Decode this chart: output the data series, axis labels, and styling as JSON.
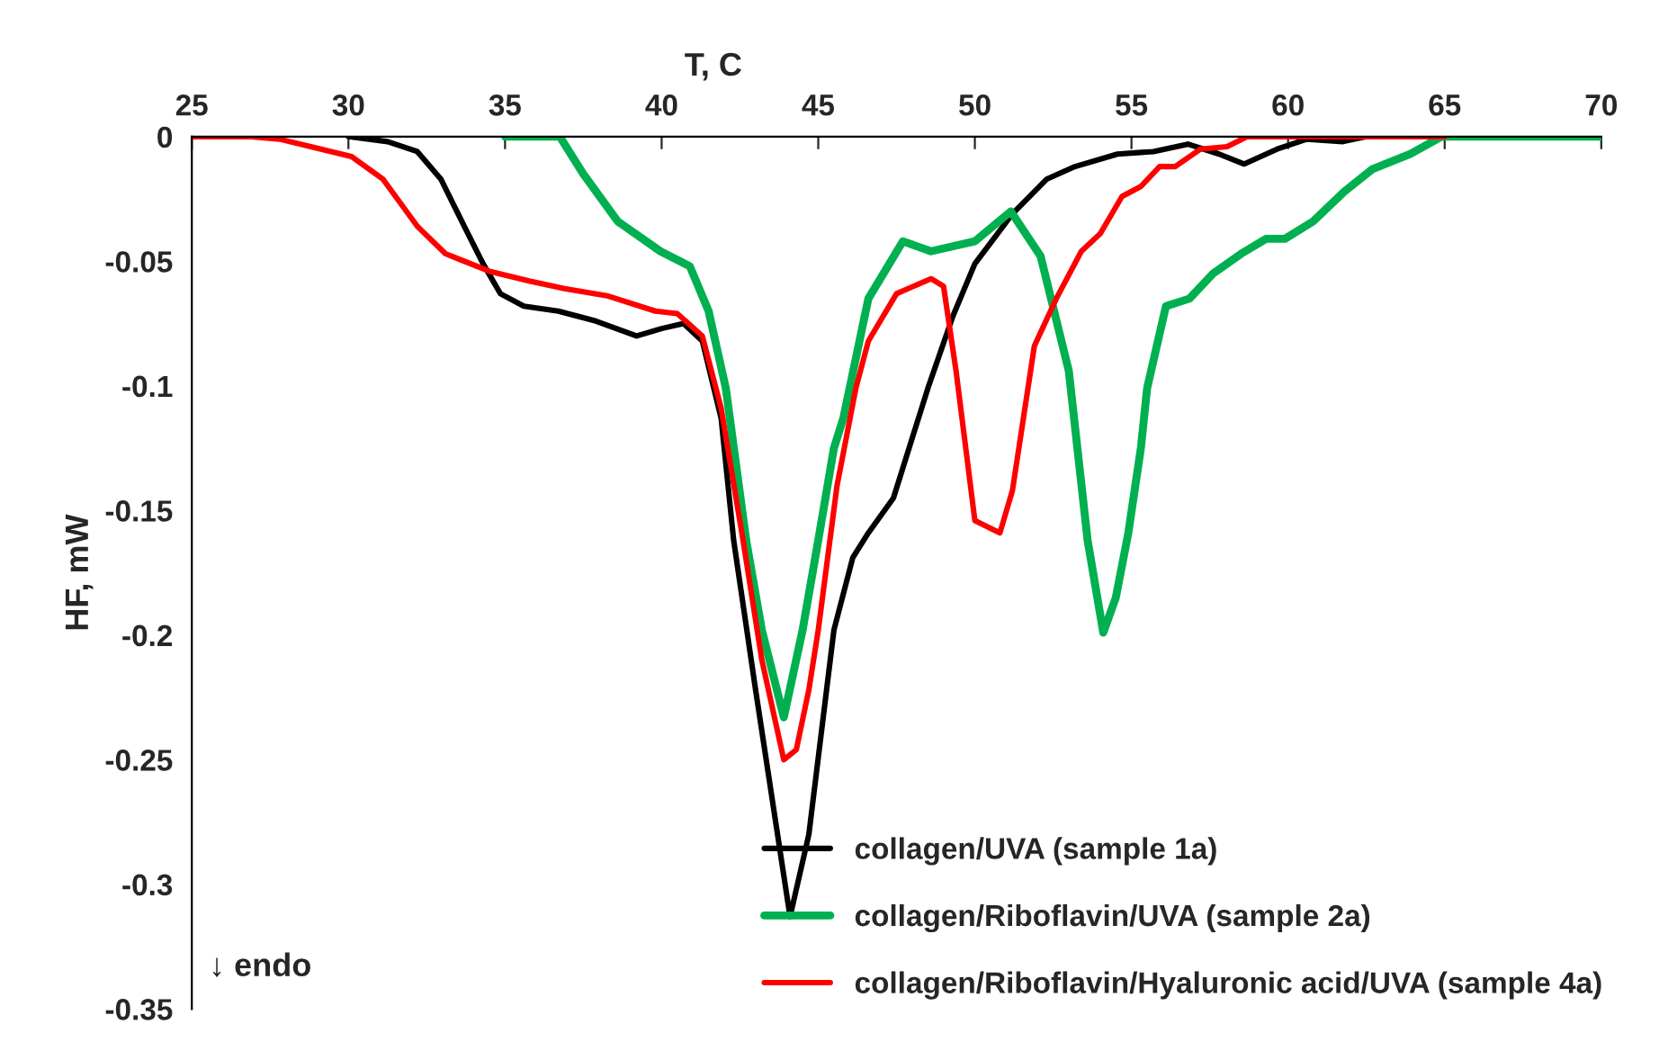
{
  "chart_data": {
    "type": "line",
    "xlabel": "T, C",
    "ylabel": "HF, mW",
    "xlim": [
      25,
      70
    ],
    "xticks": [
      25,
      30,
      35,
      40,
      45,
      50,
      55,
      60,
      65,
      70
    ],
    "ylim": [
      -0.35,
      0
    ],
    "yticks": [
      {
        "value": -0.35,
        "label": "-0.35"
      },
      {
        "value": -0.3,
        "label": "-0.3"
      },
      {
        "value": -0.25,
        "label": "-0.25"
      },
      {
        "value": -0.2,
        "label": "-0.2"
      },
      {
        "value": -0.15,
        "label": "-0.15"
      },
      {
        "value": -0.1,
        "label": "-0.1"
      },
      {
        "value": -0.05,
        "label": "-0.05"
      },
      {
        "value": 0,
        "label": "0"
      }
    ],
    "grid": false,
    "legend": "bottom right",
    "marker": "none",
    "line_style": "solid",
    "annotations": [
      "↓ endo"
    ],
    "series": [
      {
        "name": "collagen/UVA (sample 1a)",
        "color": "#000000",
        "x": [
          30,
          31.25,
          32.2,
          32.95,
          33.7,
          34.3,
          34.85,
          35.6,
          36.7,
          37.9,
          39.2,
          40,
          40.7,
          41.3,
          41.9,
          42.3,
          43.0,
          44.1,
          44.7,
          45.5,
          46.1,
          46.6,
          47.4,
          48.5,
          49.3,
          50.0,
          51.2,
          52.3,
          53.2,
          54.55,
          55.7,
          56.8,
          57.8,
          58.6,
          59.65,
          60.6,
          61.75,
          62.5
        ],
        "values": [
          0,
          -0.002,
          -0.006,
          -0.017,
          -0.036,
          -0.051,
          -0.063,
          -0.068,
          -0.07,
          -0.074,
          -0.08,
          -0.077,
          -0.075,
          -0.082,
          -0.113,
          -0.162,
          -0.222,
          -0.313,
          -0.28,
          -0.198,
          -0.169,
          -0.159,
          -0.145,
          -0.101,
          -0.072,
          -0.051,
          -0.031,
          -0.017,
          -0.012,
          -0.007,
          -0.006,
          -0.003,
          -0.007,
          -0.011,
          -0.005,
          -0.001,
          -0.002,
          0
        ]
      },
      {
        "name": "collagen/Riboflavin/UVA (sample 2a)",
        "color": "#00b050",
        "x": [
          35,
          36.75,
          37.5,
          38.6,
          39.96,
          40.9,
          41.5,
          42.05,
          42.7,
          43.2,
          43.9,
          44.5,
          45.0,
          45.5,
          45.8,
          46.6,
          47.7,
          48.6,
          50.0,
          51.15,
          52.1,
          53.0,
          53.6,
          54.1,
          54.5,
          54.9,
          55.3,
          55.5,
          56.1,
          56.85,
          57.6,
          58.5,
          59.3,
          59.9,
          60.8,
          61.8,
          62.7,
          63.9,
          64.9,
          70
        ],
        "values": [
          0,
          0,
          -0.015,
          -0.034,
          -0.046,
          -0.052,
          -0.07,
          -0.101,
          -0.162,
          -0.198,
          -0.233,
          -0.198,
          -0.162,
          -0.125,
          -0.113,
          -0.065,
          -0.042,
          -0.046,
          -0.042,
          -0.03,
          -0.048,
          -0.094,
          -0.162,
          -0.199,
          -0.185,
          -0.159,
          -0.125,
          -0.101,
          -0.068,
          -0.065,
          -0.055,
          -0.047,
          -0.041,
          -0.041,
          -0.034,
          -0.022,
          -0.013,
          -0.007,
          0,
          0
        ]
      },
      {
        "name": "collagen/Riboflavin/Hyaluronic acid/UVA (sample 4a)",
        "color": "#ff0000",
        "x": [
          25,
          26.9,
          27.8,
          28.8,
          30.1,
          31.1,
          32.2,
          33.1,
          34.5,
          35.8,
          36.9,
          38.3,
          39.8,
          40.5,
          41.3,
          41.9,
          42.6,
          43.2,
          43.9,
          44.3,
          44.7,
          45.0,
          45.6,
          46.2,
          46.6,
          47.5,
          48.6,
          49.0,
          49.4,
          50.0,
          50.8,
          51.2,
          51.9,
          52.6,
          53.4,
          54.0,
          54.7,
          55.3,
          55.9,
          56.4,
          57.2,
          58.05,
          58.7,
          60.4,
          65
        ],
        "values": [
          0,
          0,
          -0.001,
          -0.004,
          -0.008,
          -0.017,
          -0.036,
          -0.047,
          -0.054,
          -0.058,
          -0.061,
          -0.064,
          -0.07,
          -0.071,
          -0.08,
          -0.109,
          -0.162,
          -0.21,
          -0.25,
          -0.246,
          -0.222,
          -0.198,
          -0.14,
          -0.101,
          -0.082,
          -0.063,
          -0.057,
          -0.06,
          -0.094,
          -0.154,
          -0.159,
          -0.142,
          -0.084,
          -0.065,
          -0.046,
          -0.039,
          -0.024,
          -0.02,
          -0.012,
          -0.012,
          -0.005,
          -0.004,
          0,
          0,
          0
        ]
      }
    ]
  }
}
